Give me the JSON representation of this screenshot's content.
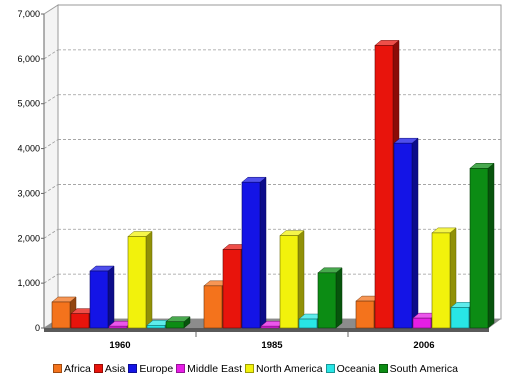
{
  "chart_data": {
    "type": "bar",
    "title": "",
    "xlabel": "",
    "ylabel": "",
    "categories": [
      "1960",
      "1985",
      "2006"
    ],
    "ylim": [
      0,
      7000
    ],
    "yticks": [
      "0",
      "1,000",
      "2,000",
      "3,000",
      "4,000",
      "5,000",
      "6,000",
      "7,000"
    ],
    "grid": true,
    "legend_position": "bottom",
    "series": [
      {
        "name": "Africa",
        "color": "#f4731c",
        "values": [
          580,
          940,
          600
        ]
      },
      {
        "name": "Asia",
        "color": "#e8140c",
        "values": [
          320,
          1750,
          6300
        ]
      },
      {
        "name": "Europe",
        "color": "#1414e6",
        "values": [
          1270,
          3250,
          4120
        ]
      },
      {
        "name": "Middle East",
        "color": "#e61ee6",
        "values": [
          40,
          40,
          220
        ]
      },
      {
        "name": "North America",
        "color": "#f2f20c",
        "values": [
          2040,
          2060,
          2120
        ]
      },
      {
        "name": "Oceania",
        "color": "#28e6e6",
        "values": [
          60,
          200,
          460
        ]
      },
      {
        "name": "South America",
        "color": "#0c8c14",
        "values": [
          140,
          1230,
          3560
        ]
      }
    ]
  }
}
